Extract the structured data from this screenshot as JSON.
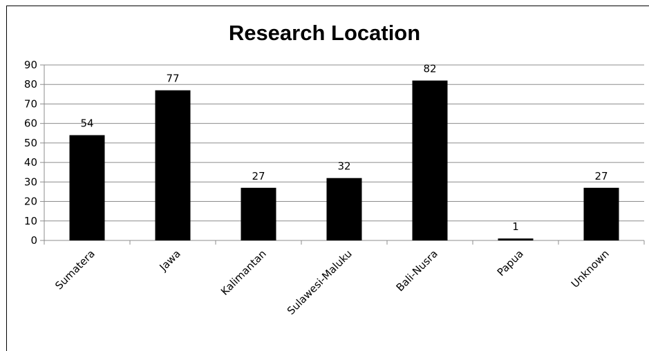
{
  "chart_data": {
    "type": "bar",
    "title": "Research Location",
    "categories": [
      "Sumatera",
      "Jawa",
      "Kalimantan",
      "Sulawesi-Maluku",
      "Bali-Nusra",
      "Papua",
      "Unknown"
    ],
    "values": [
      54,
      77,
      27,
      32,
      82,
      1,
      27
    ],
    "data_labels": [
      "54",
      "77",
      "27",
      "32",
      "82",
      "1",
      "27"
    ],
    "yticks": [
      "0",
      "10",
      "20",
      "30",
      "40",
      "50",
      "60",
      "70",
      "80",
      "90"
    ],
    "ylim": [
      0,
      90
    ],
    "grid": true,
    "legend": "none",
    "bar_color": "#000000",
    "grid_color": "#8c8c8c"
  }
}
